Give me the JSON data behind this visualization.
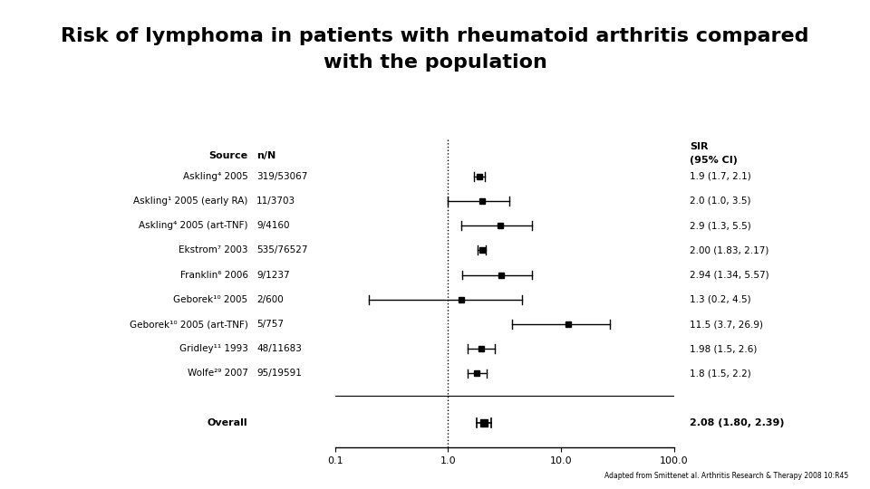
{
  "title_line1": "Risk of lymphoma in patients with rheumatoid arthritis compared",
  "title_line2": "with the population",
  "title_fontsize": 16,
  "footer": "Adapted from Smittenet al. Arthritis Research & Therapy 2008 10:R45",
  "studies": [
    {
      "source": "Askling⁴ 2005",
      "nN": "319/53067",
      "sir": 1.9,
      "ci_lo": 1.7,
      "ci_hi": 2.1,
      "sir_text": "1.9 (1.7, 2.1)"
    },
    {
      "source": "Askling¹ 2005 (early RA)",
      "nN": "11/3703",
      "sir": 2.0,
      "ci_lo": 1.0,
      "ci_hi": 3.5,
      "sir_text": "2.0 (1.0, 3.5)"
    },
    {
      "source": "Askling⁴ 2005 (art-TNF)",
      "nN": "9/4160",
      "sir": 2.9,
      "ci_lo": 1.3,
      "ci_hi": 5.5,
      "sir_text": "2.9 (1.3, 5.5)"
    },
    {
      "source": "Ekstrom⁷ 2003",
      "nN": "535/76527",
      "sir": 2.0,
      "ci_lo": 1.83,
      "ci_hi": 2.17,
      "sir_text": "2.00 (1.83, 2.17)"
    },
    {
      "source": "Franklin⁶ 2006",
      "nN": "9/1237",
      "sir": 2.94,
      "ci_lo": 1.34,
      "ci_hi": 5.57,
      "sir_text": "2.94 (1.34, 5.57)"
    },
    {
      "source": "Geborek¹⁰ 2005",
      "nN": "2/600",
      "sir": 1.3,
      "ci_lo": 0.2,
      "ci_hi": 4.5,
      "sir_text": "1.3 (0.2, 4.5)"
    },
    {
      "source": "Geborek¹⁰ 2005 (art-TNF)",
      "nN": "5/757",
      "sir": 11.5,
      "ci_lo": 3.7,
      "ci_hi": 26.9,
      "sir_text": "11.5 (3.7, 26.9)"
    },
    {
      "source": "Gridley¹¹ 1993",
      "nN": "48/11683",
      "sir": 1.98,
      "ci_lo": 1.5,
      "ci_hi": 2.6,
      "sir_text": "1.98 (1.5, 2.6)"
    },
    {
      "source": "Wolfe²⁹ 2007",
      "nN": "95/19591",
      "sir": 1.8,
      "ci_lo": 1.5,
      "ci_hi": 2.2,
      "sir_text": "1.8 (1.5, 2.2)"
    }
  ],
  "overall": {
    "source": "Overall",
    "sir": 2.08,
    "ci_lo": 1.8,
    "ci_hi": 2.39,
    "sir_text": "2.08 (1.80, 2.39)"
  },
  "xmin": 0.1,
  "xmax": 100.0,
  "xticks": [
    0.1,
    1.0,
    10.0,
    100.0
  ],
  "xticklabels": [
    "0.1",
    "1.0",
    "10.0",
    "100.0"
  ],
  "ref_line": 1.0,
  "background_color": "#ffffff"
}
